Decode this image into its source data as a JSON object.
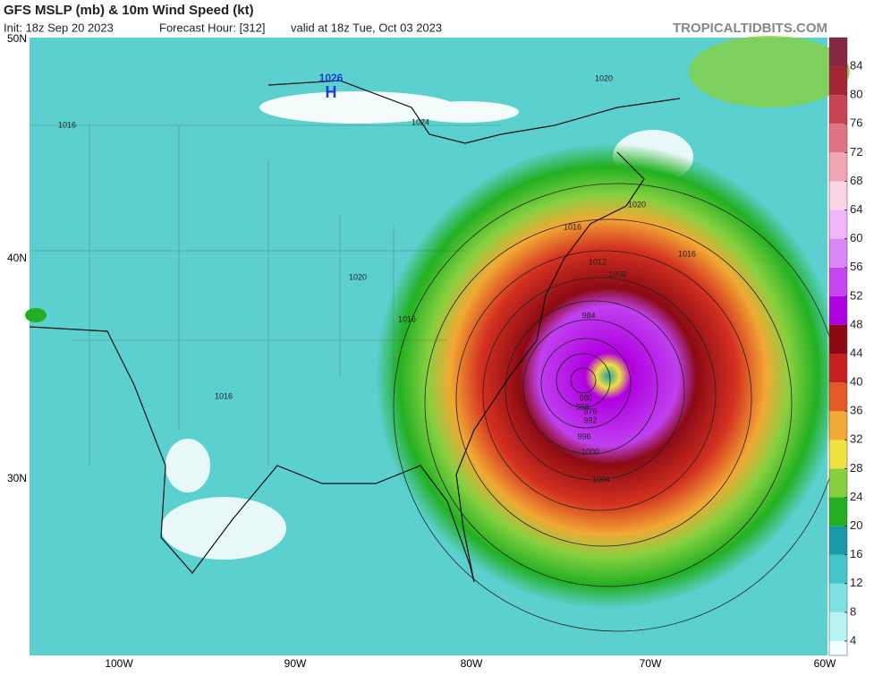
{
  "header": {
    "title": "GFS MSLP (mb) & 10m Wind Speed (kt)",
    "init": "Init: 18z Sep 20 2023",
    "forecast": "Forecast Hour: [312]",
    "valid": "valid at 18z Tue, Oct 03 2023",
    "credit": "TROPICALTIDBITS.COM"
  },
  "map": {
    "lat_labels": [
      "50N",
      "40N",
      "30N"
    ],
    "lon_labels": [
      "100W",
      "90W",
      "80W",
      "70W",
      "60W"
    ],
    "high_value": "1026",
    "high_label": "H",
    "contour_labels": [
      "1020",
      "1024",
      "1016",
      "1016",
      "1020",
      "1016",
      "1016",
      "1020",
      "1016",
      "1012",
      "1008",
      "1004",
      "1000",
      "996",
      "992",
      "988",
      "984",
      "980",
      "976"
    ]
  },
  "colorbar": {
    "range": [
      2,
      88
    ],
    "ticks": [
      4,
      8,
      12,
      16,
      20,
      24,
      28,
      32,
      36,
      40,
      44,
      48,
      52,
      56,
      60,
      64,
      68,
      72,
      76,
      80,
      84
    ],
    "colors": [
      "#f2ffff",
      "#b8f4f4",
      "#7ee2e2",
      "#42c6cc",
      "#1a9aa8",
      "#22b022",
      "#86d040",
      "#f0e040",
      "#f2a834",
      "#e45a24",
      "#c42020",
      "#8c0a14",
      "#b000e0",
      "#c446f0",
      "#d886f8",
      "#f0b4f8",
      "#f8d4e4",
      "#f2a6b4",
      "#e07484",
      "#c84454",
      "#a42434",
      "#842844"
    ]
  }
}
